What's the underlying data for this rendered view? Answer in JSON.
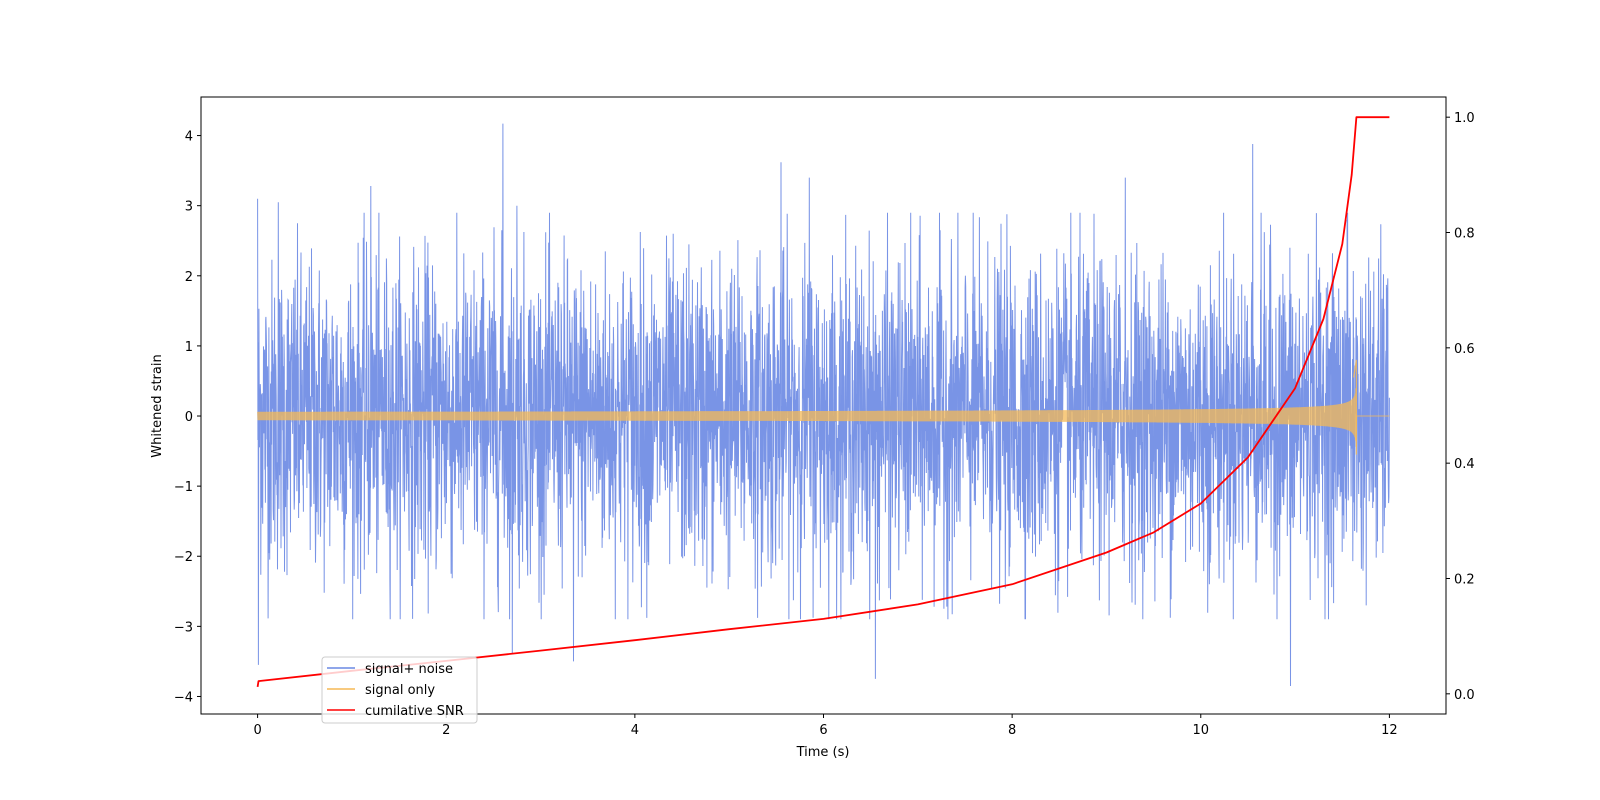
{
  "chart_data": {
    "type": "line",
    "xlabel": "Time (s)",
    "ylabel": "Whitened strain",
    "xlim": [
      -0.6,
      12.6
    ],
    "ylim_left": [
      -4.25,
      4.55
    ],
    "ylim_right": [
      -0.035,
      1.035
    ],
    "x_ticks": [
      0,
      2,
      4,
      6,
      8,
      10,
      12
    ],
    "x_tick_labels": [
      "0",
      "2",
      "4",
      "6",
      "8",
      "10",
      "12"
    ],
    "y_left_ticks": [
      -4,
      -3,
      -2,
      -1,
      0,
      1,
      2,
      3,
      4
    ],
    "y_left_tick_labels": [
      "−4",
      "−3",
      "−2",
      "−1",
      "0",
      "1",
      "2",
      "3",
      "4"
    ],
    "y_right_ticks": [
      0.0,
      0.2,
      0.4,
      0.6,
      0.8,
      1.0
    ],
    "y_right_tick_labels": [
      "0.0",
      "0.2",
      "0.4",
      "0.6",
      "0.8",
      "1.0"
    ],
    "grid": false,
    "legend_position": "lower-left",
    "series": [
      {
        "name": "signal+ noise",
        "axis": "left",
        "color": "#6a88e3",
        "x_range": [
          0,
          12
        ],
        "typical_range": [
          -2.0,
          2.0
        ],
        "spikes": [
          {
            "x": 0.0,
            "y": 3.1
          },
          {
            "x": 0.01,
            "y": -3.55
          },
          {
            "x": 0.22,
            "y": 3.05
          },
          {
            "x": 1.2,
            "y": 3.28
          },
          {
            "x": 2.6,
            "y": 4.17
          },
          {
            "x": 2.7,
            "y": -3.4
          },
          {
            "x": 2.75,
            "y": 3.0
          },
          {
            "x": 3.35,
            "y": -3.5
          },
          {
            "x": 5.55,
            "y": 3.62
          },
          {
            "x": 5.85,
            "y": 3.4
          },
          {
            "x": 6.55,
            "y": -3.75
          },
          {
            "x": 9.2,
            "y": 3.4
          },
          {
            "x": 10.55,
            "y": 3.88
          },
          {
            "x": 10.95,
            "y": -3.85
          },
          {
            "x": 11.55,
            "y": 2.8
          }
        ]
      },
      {
        "name": "signal only",
        "axis": "left",
        "color": "#f5b955",
        "x_range": [
          0,
          12
        ],
        "merger_time": 11.65,
        "peak_amplitude": 0.8
      },
      {
        "name": "cumilative SNR",
        "axis": "right",
        "color": "#ff0000",
        "points": [
          [
            0.0,
            0.012
          ],
          [
            0.01,
            0.022
          ],
          [
            1.0,
            0.04
          ],
          [
            2.0,
            0.057
          ],
          [
            3.0,
            0.075
          ],
          [
            4.0,
            0.093
          ],
          [
            5.0,
            0.112
          ],
          [
            6.0,
            0.13
          ],
          [
            7.0,
            0.155
          ],
          [
            8.0,
            0.19
          ],
          [
            9.0,
            0.245
          ],
          [
            9.5,
            0.28
          ],
          [
            10.0,
            0.33
          ],
          [
            10.5,
            0.41
          ],
          [
            11.0,
            0.53
          ],
          [
            11.3,
            0.65
          ],
          [
            11.5,
            0.78
          ],
          [
            11.6,
            0.9
          ],
          [
            11.65,
            1.0
          ],
          [
            12.0,
            1.0
          ]
        ]
      }
    ]
  }
}
